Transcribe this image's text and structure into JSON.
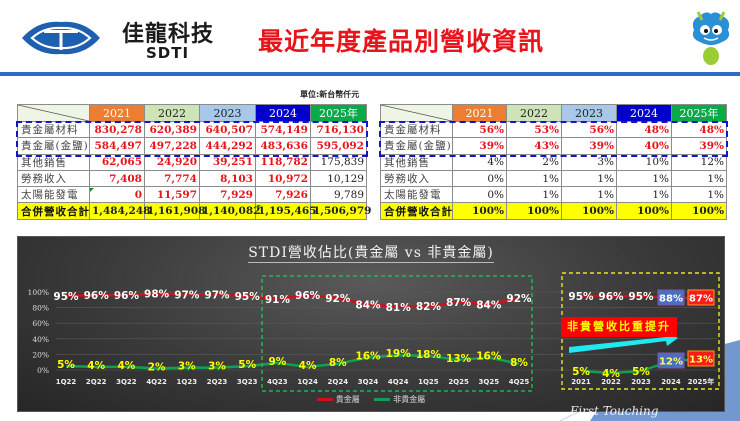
{
  "header": {
    "company_name": "佳龍科技",
    "company_abbr": "SDTI",
    "page_title": "最近年度產品別營收資訊",
    "brand_color": "#2e6ac7",
    "title_color": "#e8141c"
  },
  "unit_label": "單位:新台幣仟元",
  "revenue_table": {
    "years": [
      "2021",
      "2022",
      "2023",
      "2024",
      "2025年"
    ],
    "rows": [
      {
        "label": "貴金屬材料",
        "values": [
          "830,278",
          "620,389",
          "640,507",
          "574,149",
          "716,130"
        ]
      },
      {
        "label": "貴金屬(金鹽)",
        "values": [
          "584,497",
          "497,228",
          "444,292",
          "483,636",
          "595,092"
        ]
      },
      {
        "label": "其他銷售",
        "values": [
          "62,065",
          "24,920",
          "39,251",
          "118,782",
          "175,839"
        ]
      },
      {
        "label": "勞務收入",
        "values": [
          "7,408",
          "7,774",
          "8,103",
          "10,972",
          "10,129"
        ]
      },
      {
        "label": "太陽能發電",
        "values": [
          "0",
          "11,597",
          "7,929",
          "7,926",
          "9,789"
        ]
      }
    ],
    "total": {
      "label": "合併營收合計",
      "values": [
        "1,484,248",
        "1,161,908",
        "1,140,082",
        "1,195,465",
        "1,506,979"
      ]
    }
  },
  "share_table": {
    "years": [
      "2021",
      "2022",
      "2023",
      "2024",
      "2025年"
    ],
    "rows": [
      {
        "label": "貴金屬材料",
        "values": [
          "56%",
          "53%",
          "56%",
          "48%",
          "48%"
        ]
      },
      {
        "label": "貴金屬(金鹽)",
        "values": [
          "39%",
          "43%",
          "39%",
          "40%",
          "39%"
        ]
      },
      {
        "label": "其他銷售",
        "values": [
          "4%",
          "2%",
          "3%",
          "10%",
          "12%"
        ]
      },
      {
        "label": "勞務收入",
        "values": [
          "0%",
          "1%",
          "1%",
          "1%",
          "1%"
        ]
      },
      {
        "label": "太陽能發電",
        "values": [
          "0%",
          "1%",
          "1%",
          "1%",
          "1%"
        ]
      }
    ],
    "total": {
      "label": "合併營收合計",
      "values": [
        "100%",
        "100%",
        "100%",
        "100%",
        "100%"
      ]
    }
  },
  "chart_data": [
    {
      "type": "line",
      "title": "STDI營收佔比(貴金屬 vs 非貴金屬)",
      "xlabel": "",
      "ylabel": "",
      "ylim": [
        0,
        100
      ],
      "yticks": [
        "0%",
        "20%",
        "40%",
        "60%",
        "80%",
        "100%"
      ],
      "grid": true,
      "legend_position": "bottom",
      "categories": [
        "1Q22",
        "2Q22",
        "3Q22",
        "4Q22",
        "1Q23",
        "2Q23",
        "3Q23",
        "4Q23",
        "1Q24",
        "2Q24",
        "3Q24",
        "4Q24",
        "1Q25",
        "2Q25",
        "3Q25",
        "4Q25"
      ],
      "series": [
        {
          "name": "貴金屬",
          "color": "#d0101a",
          "values": [
            95,
            96,
            96,
            98,
            97,
            97,
            95,
            91,
            96,
            92,
            84,
            81,
            82,
            87,
            84,
            92
          ],
          "labels": [
            "95%",
            "96%",
            "96%",
            "98%",
            "97%",
            "97%",
            "95%",
            "91%",
            "96%",
            "92%",
            "84%",
            "81%",
            "82%",
            "87%",
            "84%",
            "92%"
          ]
        },
        {
          "name": "非貴金屬",
          "color": "#10a050",
          "values": [
            5,
            4,
            4,
            2,
            3,
            3,
            5,
            9,
            4,
            8,
            16,
            19,
            18,
            13,
            16,
            8
          ],
          "labels": [
            "5%",
            "4%",
            "4%",
            "2%",
            "3%",
            "3%",
            "5%",
            "9%",
            "4%",
            "8%",
            "16%",
            "19%",
            "18%",
            "13%",
            "16%",
            "8%"
          ]
        }
      ],
      "annotations": [
        "green dashed box highlighting 4Q23-4Q25"
      ]
    },
    {
      "type": "line",
      "title": "",
      "categories": [
        "2021",
        "2022",
        "2023",
        "2024",
        "2025年"
      ],
      "series": [
        {
          "name": "貴金屬",
          "color": "#d0101a",
          "values": [
            95,
            96,
            95,
            88,
            87
          ],
          "labels": [
            "95%",
            "96%",
            "95%",
            "88%",
            "87%"
          ]
        },
        {
          "name": "非貴金屬",
          "color": "#10a050",
          "values": [
            5,
            4,
            5,
            12,
            13
          ],
          "labels": [
            "5%",
            "4%",
            "5%",
            "12%",
            "13%"
          ]
        }
      ],
      "annotations": [
        "非貴營收比重提升",
        "cyan upward arrow",
        "yellow dashed box"
      ]
    }
  ],
  "chart_legend": [
    "貴金屬",
    "非貴金屬"
  ],
  "callout_text": "非貴營收比重提升",
  "watermark": "First Touching"
}
